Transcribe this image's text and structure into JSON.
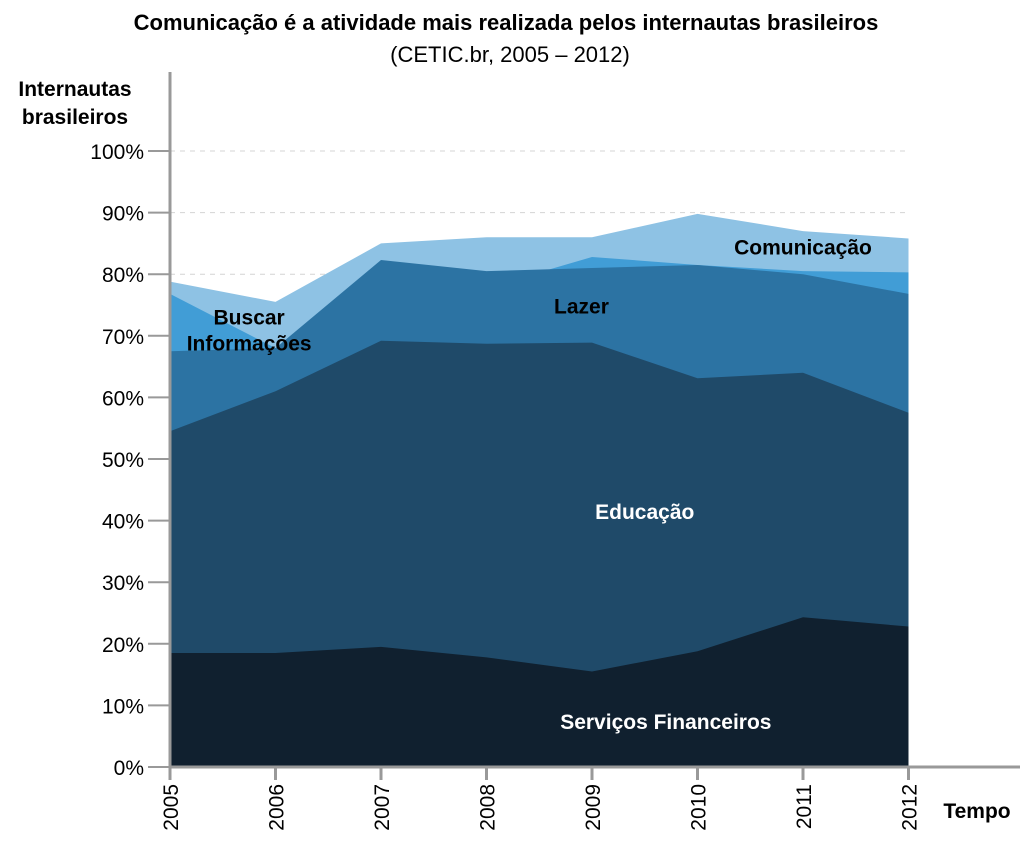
{
  "chart_data": {
    "type": "area",
    "stacked": true,
    "title": "Comunicação é a atividade mais realizada pelos internautas brasileiros",
    "subtitle": "(CETIC.br, 2005 – 2012)",
    "ylabel": "Internautas brasileiros",
    "ylabel_lines": [
      "Internautas",
      "brasileiros"
    ],
    "xlabel": "Tempo",
    "x": [
      "2005",
      "2006",
      "2007",
      "2008",
      "2009",
      "2010",
      "2011",
      "2012"
    ],
    "ylim": [
      0,
      100
    ],
    "yticks": [
      "0%",
      "10%",
      "20%",
      "30%",
      "40%",
      "50%",
      "60%",
      "70%",
      "80%",
      "90%",
      "100%"
    ],
    "grid": true,
    "series": [
      {
        "name": "Serviços Financeiros",
        "color": "#10202f",
        "label_color": "#ffffff",
        "label_lines": [
          "Serviços Financeiros"
        ],
        "cumulative": [
          18.5,
          18.5,
          19.5,
          17.8,
          15.5,
          18.8,
          24.3,
          22.8
        ]
      },
      {
        "name": "Educação",
        "color": "#1f4a69",
        "label_color": "#ffffff",
        "label_lines": [
          "Educação"
        ],
        "cumulative": [
          54.5,
          61.0,
          69.2,
          68.7,
          68.9,
          63.1,
          64.0,
          57.5
        ]
      },
      {
        "name": "Lazer",
        "color": "#2c73a3",
        "label_color": "#000000",
        "label_lines": [
          "Lazer"
        ],
        "cumulative": [
          67.5,
          68.0,
          82.3,
          80.5,
          81.0,
          81.5,
          80.0,
          76.8
        ]
      },
      {
        "name": "Buscar Informações",
        "color": "#419dd6",
        "label_color": "#000000",
        "label_lines": [
          "Buscar",
          "Informações"
        ],
        "cumulative": [
          76.8,
          68.0,
          81.0,
          77.8,
          82.8,
          81.5,
          80.5,
          80.3
        ]
      },
      {
        "name": "Comunicação",
        "color": "#8ec2e4",
        "label_color": "#000000",
        "label_lines": [
          "Comunicação"
        ],
        "cumulative": [
          78.8,
          75.5,
          85.0,
          86.0,
          86.0,
          89.8,
          87.0,
          85.8
        ]
      }
    ]
  }
}
